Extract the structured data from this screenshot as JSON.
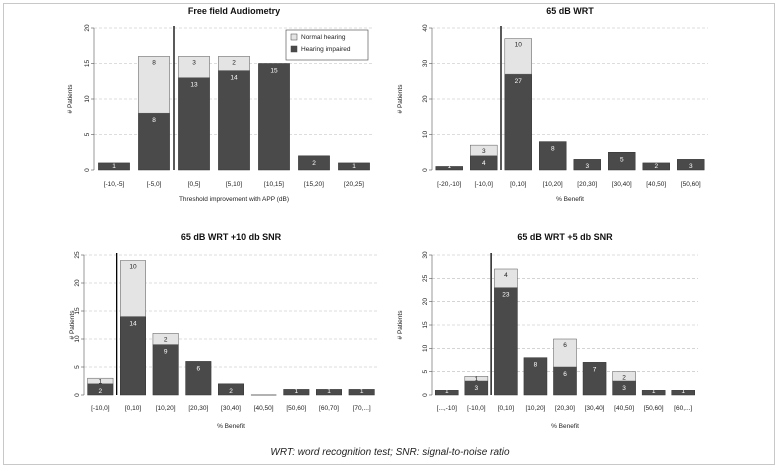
{
  "caption": "WRT: word recognition test; SNR: signal-to-noise ratio",
  "chart_data": [
    {
      "type": "bar",
      "stacked": true,
      "title": "Free field Audiometry",
      "xlabel": "Threshold improvement with APP (dB)",
      "ylabel": "# Patients",
      "ylim": [
        0,
        20
      ],
      "yticks": [
        0,
        5,
        10,
        15,
        20
      ],
      "grid": "horizontal-dashed",
      "legend": {
        "position": "top-right",
        "entries": [
          {
            "name": "Normal hearing",
            "color": "#e4e4e4"
          },
          {
            "name": "Hearing impaired",
            "color": "#4a4a4a"
          }
        ]
      },
      "zero_line_after_index": 1,
      "categories": [
        "[-10,-5]",
        "[-5,0]",
        "[0,5]",
        "[5,10]",
        "[10,15]",
        "[15,20]",
        "[20,25]"
      ],
      "series": [
        {
          "name": "Hearing impaired",
          "values": [
            1,
            8,
            13,
            14,
            15,
            2,
            1
          ]
        },
        {
          "name": "Normal hearing",
          "values": [
            0,
            8,
            3,
            2,
            0,
            0,
            0
          ]
        }
      ]
    },
    {
      "type": "bar",
      "stacked": true,
      "title": "65 dB WRT",
      "xlabel": "% Benefit",
      "ylabel": "# Patients",
      "ylim": [
        0,
        40
      ],
      "yticks": [
        0,
        10,
        20,
        30,
        40
      ],
      "grid": "horizontal-dashed",
      "zero_line_after_index": 1,
      "categories": [
        "[-20,-10]",
        "[-10,0]",
        "[0,10]",
        "[10,20]",
        "[20,30]",
        "[30,40]",
        "[40,50]",
        "[50,60]"
      ],
      "series": [
        {
          "name": "Hearing impaired",
          "values": [
            1,
            4,
            27,
            8,
            3,
            5,
            2,
            3
          ]
        },
        {
          "name": "Normal hearing",
          "values": [
            0,
            3,
            10,
            0,
            0,
            0,
            0,
            0
          ]
        }
      ]
    },
    {
      "type": "bar",
      "stacked": true,
      "title": "65 dB WRT +10 db SNR",
      "xlabel": "% Benefit",
      "ylabel": "# Patients",
      "ylim": [
        0,
        25
      ],
      "yticks": [
        0,
        5,
        10,
        15,
        20,
        25
      ],
      "grid": "horizontal-dashed",
      "zero_line_after_index": 0,
      "categories": [
        "[-10,0]",
        "[0,10]",
        "[10,20]",
        "[20,30]",
        "[30,40]",
        "[40,50]",
        "[50,60]",
        "[60,70]",
        "[70,...]"
      ],
      "series": [
        {
          "name": "Hearing impaired",
          "values": [
            2,
            14,
            9,
            6,
            2,
            0,
            1,
            1,
            1
          ]
        },
        {
          "name": "Normal hearing",
          "values": [
            1,
            10,
            2,
            0,
            0,
            0,
            0,
            0,
            0
          ]
        }
      ]
    },
    {
      "type": "bar",
      "stacked": true,
      "title": "65 dB WRT +5 db SNR",
      "xlabel": "% Benefit",
      "ylabel": "# Patients",
      "ylim": [
        0,
        30
      ],
      "yticks": [
        0,
        5,
        10,
        15,
        20,
        25,
        30
      ],
      "grid": "horizontal-dashed",
      "zero_line_after_index": 1,
      "categories": [
        "[...,-10]",
        "[-10,0]",
        "[0,10]",
        "[10,20]",
        "[20,30]",
        "[30,40]",
        "[40,50]",
        "[50,60]",
        "[60,...]"
      ],
      "series": [
        {
          "name": "Hearing impaired",
          "values": [
            1,
            3,
            23,
            8,
            6,
            7,
            3,
            1,
            1
          ]
        },
        {
          "name": "Normal hearing",
          "values": [
            0,
            1,
            4,
            0,
            6,
            0,
            2,
            0,
            0
          ]
        }
      ]
    }
  ],
  "colors": {
    "impaired": "#4a4a4a",
    "normal": "#e4e4e4",
    "grid": "#bbbbbb",
    "axis": "#555555"
  }
}
